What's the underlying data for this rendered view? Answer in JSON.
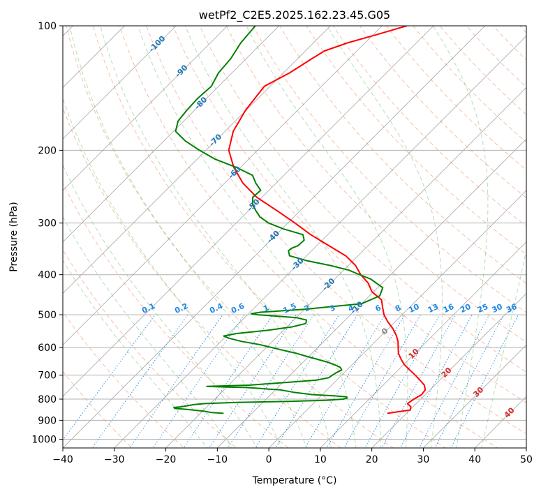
{
  "chart_data": {
    "type": "line",
    "chart_kind": "skew-T log-p diagram",
    "title": "wetPf2_C2E5.2025.162.23.45.G05",
    "xlabel": "Temperature (°C)",
    "ylabel": "Pressure (hPa)",
    "xlim": [
      -40,
      50
    ],
    "ylim": [
      1050,
      100
    ],
    "y_scale": "log",
    "x_ticks": [
      -40,
      -30,
      -20,
      -10,
      0,
      10,
      20,
      30,
      40,
      50
    ],
    "x_tick_labels": [
      "−40",
      "−30",
      "−20",
      "−10",
      "0",
      "10",
      "20",
      "30",
      "40",
      "50"
    ],
    "y_ticks": [
      100,
      200,
      300,
      400,
      500,
      600,
      700,
      800,
      900,
      1000
    ],
    "y_tick_labels": [
      "100",
      "200",
      "300",
      "400",
      "500",
      "600",
      "700",
      "800",
      "900",
      "1000"
    ],
    "grid": true,
    "colors": {
      "temperature": "#ff0000",
      "dewpoint": "#008000",
      "dry_adiabats": "#f4a582",
      "moist_adiabats": "#2ca02c",
      "mixing_ratio": "#1e88e5",
      "isotherms": "#808080",
      "label_blue": "#1f77b4",
      "label_red": "#d62728"
    },
    "series": [
      {
        "role": "temperature",
        "color": "#ff0000",
        "p": [
          866,
          850,
          835,
          820,
          800,
          780,
          760,
          740,
          720,
          700,
          680,
          660,
          640,
          620,
          600,
          580,
          560,
          540,
          520,
          500,
          480,
          460,
          440,
          420,
          400,
          380,
          360,
          340,
          320,
          300,
          280,
          260,
          240,
          220,
          200,
          180,
          160,
          140,
          130,
          120,
          115,
          110,
          105,
          100
        ],
        "t": [
          16.3,
          20.1,
          19.6,
          18.3,
          18.7,
          19.3,
          19.1,
          18.0,
          16.2,
          14.3,
          12.2,
          10.1,
          8.4,
          6.8,
          5.6,
          4.4,
          2.8,
          0.9,
          -1.4,
          -3.5,
          -5.2,
          -6.9,
          -10.3,
          -12.6,
          -15.8,
          -18.6,
          -22.4,
          -27.7,
          -33.3,
          -38.6,
          -44.5,
          -51.0,
          -56.5,
          -61.3,
          -65.6,
          -68.4,
          -70.1,
          -71.1,
          -68.8,
          -67.2,
          -66.3,
          -63.4,
          -59.3,
          -55.2
        ]
      },
      {
        "role": "dewpoint",
        "color": "#008000",
        "p": [
          866,
          862,
          855,
          848,
          842,
          838,
          835,
          830,
          825,
          820,
          815,
          810,
          805,
          800,
          795,
          790,
          786,
          780,
          770,
          760,
          750,
          748,
          745,
          740,
          730,
          720,
          710,
          700,
          690,
          680,
          670,
          660,
          650,
          640,
          630,
          620,
          610,
          600,
          590,
          580,
          570,
          563,
          555,
          545,
          535,
          525,
          515,
          508,
          503,
          500,
          497,
          493,
          485,
          470,
          450,
          430,
          410,
          400,
          390,
          380,
          370,
          360,
          350,
          345,
          340,
          330,
          320,
          310,
          300,
          290,
          280,
          270,
          260,
          250,
          240,
          230,
          220,
          210,
          200,
          190,
          180,
          170,
          160,
          150,
          140,
          130,
          120,
          110,
          100
        ],
        "t": [
          -15.5,
          -18.0,
          -20.0,
          -23.0,
          -26.0,
          -26.3,
          -25.0,
          -24.0,
          -23.0,
          -21.0,
          -15.0,
          -5.0,
          2.0,
          5.0,
          5.5,
          5.2,
          3.0,
          -2.0,
          -6.0,
          -9.0,
          -16.0,
          -20.0,
          -24.0,
          -16.0,
          -10.0,
          -4.0,
          -2.0,
          -1.8,
          -1.5,
          -1.0,
          -1.8,
          -3.5,
          -5.5,
          -8.0,
          -10.5,
          -13.0,
          -16.0,
          -19.0,
          -22.0,
          -26.0,
          -29.0,
          -30.5,
          -28.5,
          -23.0,
          -19.0,
          -17.0,
          -17.5,
          -20.0,
          -25.0,
          -28.0,
          -29.5,
          -28.0,
          -20.0,
          -10.0,
          -8.0,
          -9.0,
          -13.0,
          -16.0,
          -19.0,
          -23.5,
          -29.0,
          -33.3,
          -34.5,
          -34.3,
          -33.6,
          -33.5,
          -34.8,
          -39.7,
          -43.7,
          -46.6,
          -48.6,
          -50.5,
          -51.8,
          -51.6,
          -54.0,
          -56.1,
          -60.8,
          -66.6,
          -71.3,
          -75.8,
          -79.6,
          -81.1,
          -81.5,
          -81.7,
          -81.4,
          -82.6,
          -83.0,
          -84.1,
          -84.6
        ]
      }
    ],
    "mixing_ratio_labels": [
      "0.1",
      "0.2",
      "0.4",
      "0.6",
      "1",
      "1.5",
      "2",
      "3",
      "4",
      "6",
      "8",
      "10",
      "13",
      "16",
      "20",
      "25",
      "30",
      "36"
    ],
    "mixing_ratio_values": [
      0.1,
      0.2,
      0.4,
      0.6,
      1,
      1.5,
      2,
      3,
      4,
      6,
      8,
      10,
      13,
      16,
      20,
      25,
      30,
      36
    ],
    "isotherm_labels_blue": [
      {
        "text": "-100",
        "t": -100,
        "p": 110
      },
      {
        "text": "-90",
        "t": -90,
        "p": 128
      },
      {
        "text": "-80",
        "t": -80,
        "p": 153
      },
      {
        "text": "-70",
        "t": -70,
        "p": 188
      },
      {
        "text": "-60",
        "t": -60,
        "p": 225
      },
      {
        "text": "-50",
        "t": -50,
        "p": 270
      },
      {
        "text": "-40",
        "t": -40,
        "p": 322
      },
      {
        "text": "-30",
        "t": -30,
        "p": 375
      },
      {
        "text": "-20",
        "t": -20,
        "p": 420
      },
      {
        "text": "-10",
        "t": -10,
        "p": 478
      }
    ],
    "isotherm_label_gray": {
      "text": "0",
      "t": 0,
      "p": 545
    },
    "isotherm_labels_red": [
      {
        "text": "10",
        "t": 10,
        "p": 618
      },
      {
        "text": "20",
        "t": 20,
        "p": 686
      },
      {
        "text": "30",
        "t": 30,
        "p": 765
      },
      {
        "text": "40",
        "t": 40,
        "p": 858
      }
    ]
  }
}
